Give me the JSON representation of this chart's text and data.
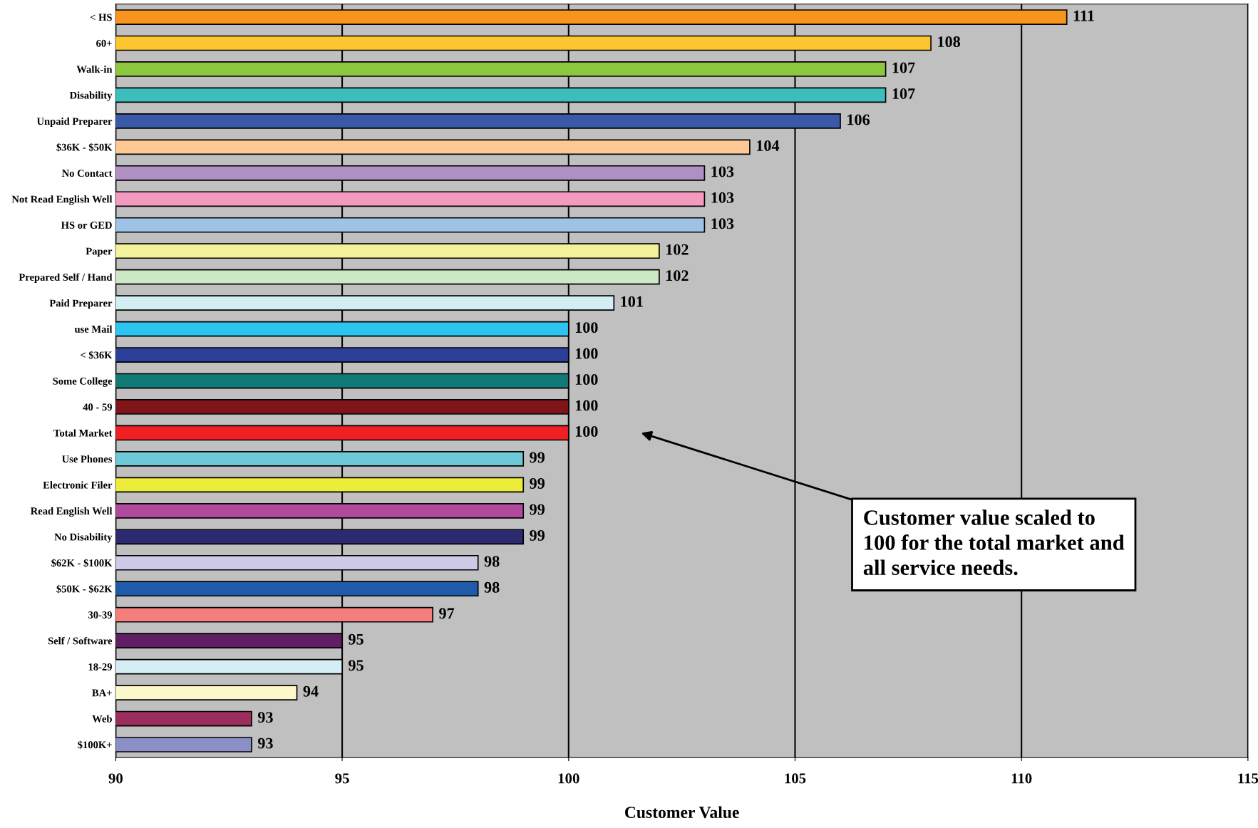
{
  "chart_data": {
    "type": "bar",
    "orientation": "horizontal",
    "xlabel": "Customer Value",
    "categories": [
      "< HS",
      "60+",
      "Walk-in",
      "Disability",
      "Unpaid Preparer",
      "$36K - $50K",
      "No Contact",
      "Not Read English Well",
      "HS or GED",
      "Paper",
      "Prepared Self / Hand",
      "Paid Preparer",
      "use Mail",
      "< $36K",
      "Some College",
      "40 - 59",
      "Total Market",
      "Use Phones",
      "Electronic Filer",
      "Read English Well",
      "No Disability",
      "$62K - $100K",
      "$50K - $62K",
      "30-39",
      "Self / Software",
      "18-29",
      "BA+",
      "Web",
      "$100K+"
    ],
    "values": [
      111,
      108,
      107,
      107,
      106,
      104,
      103,
      103,
      103,
      102,
      102,
      101,
      100,
      100,
      100,
      100,
      100,
      99,
      99,
      99,
      99,
      98,
      98,
      97,
      95,
      95,
      94,
      93,
      93
    ],
    "colors": [
      "#f7941d",
      "#fdc52f",
      "#8dc63f",
      "#3cbfbc",
      "#3a5aa8",
      "#fdc893",
      "#b08fc2",
      "#f49ac1",
      "#9ec3e6",
      "#f4f19d",
      "#cce8c4",
      "#d3eef2",
      "#2ec4f0",
      "#2b3f99",
      "#127a76",
      "#7f1519",
      "#ee2024",
      "#6dc9d6",
      "#ecec3a",
      "#b14a9d",
      "#2c2a6e",
      "#cdcbe8",
      "#1f5ba8",
      "#f37e7b",
      "#5e1f63",
      "#d5eef5",
      "#fdf8c9",
      "#9b2e5e",
      "#8b8fc7"
    ],
    "xlim": [
      90,
      115
    ],
    "xticks": [
      90,
      95,
      100,
      105,
      110,
      115
    ],
    "grid": "x",
    "data_labels": true,
    "annotations": [
      "Customer value scaled to\n100 for the total market and\nall service needs."
    ]
  }
}
